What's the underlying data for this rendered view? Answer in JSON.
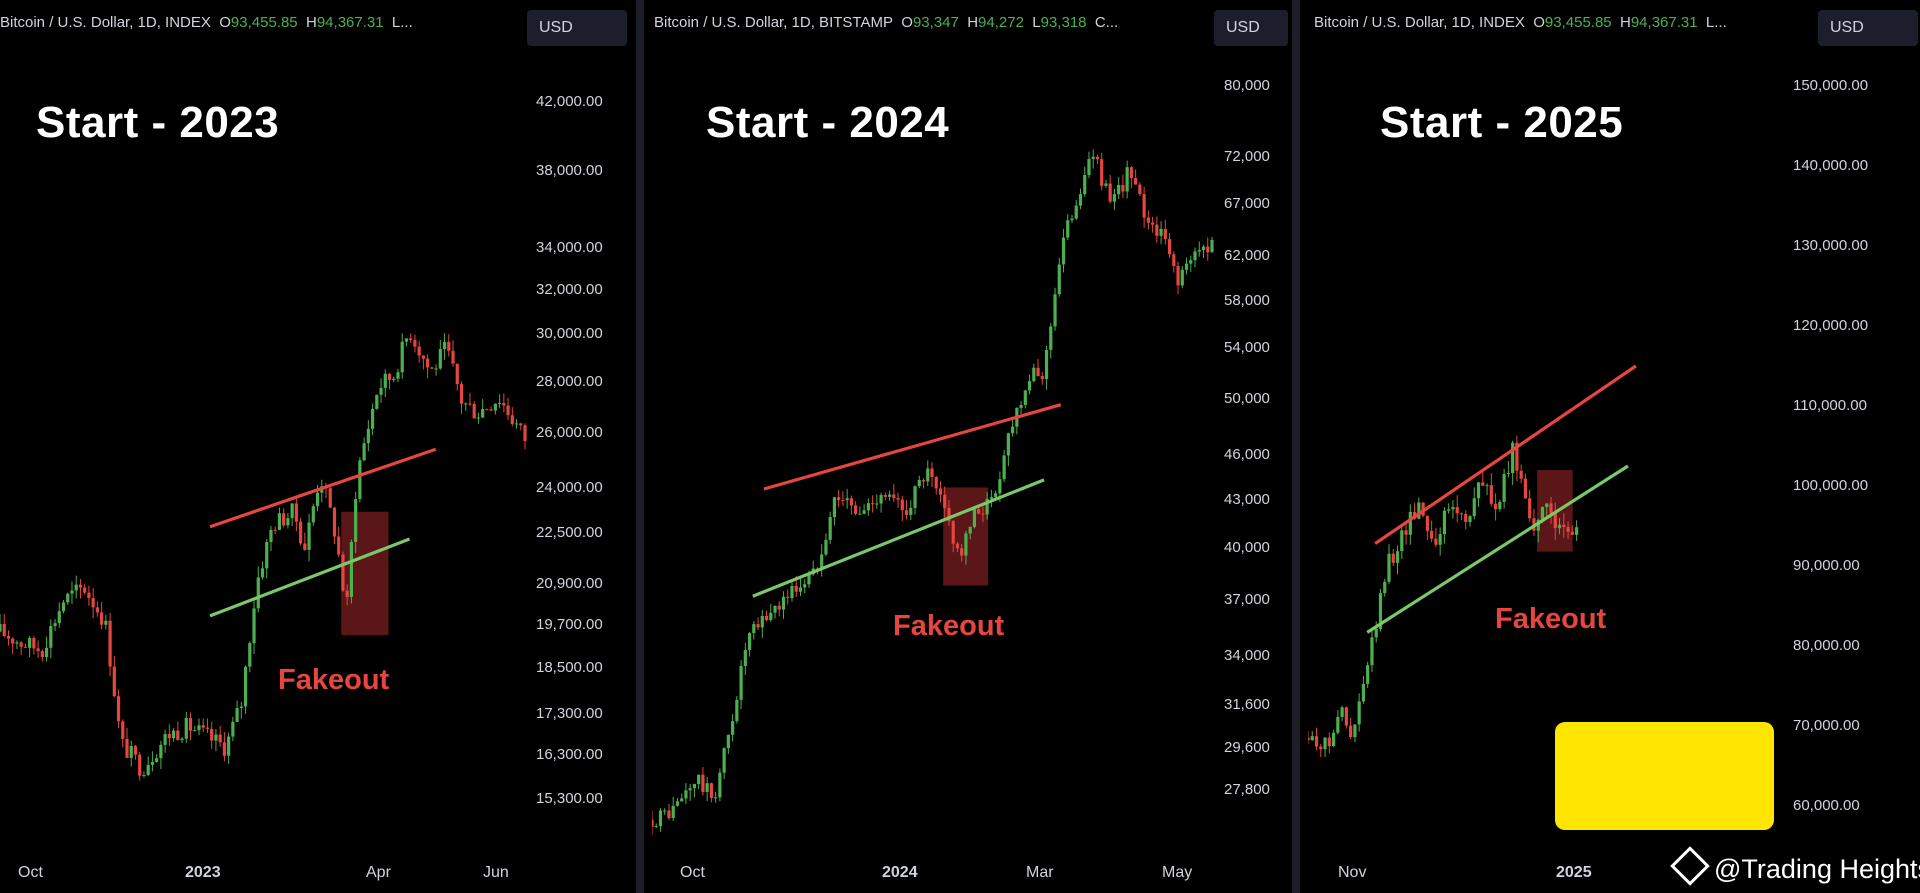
{
  "colors": {
    "up": "#4caf50",
    "down": "#e5463f",
    "resistance": "#e5463f",
    "support": "#7bc86c",
    "box": "#7a1f1f",
    "badge": "#ffe600"
  },
  "watermark": {
    "text": "@Trading Heights",
    "icon": "binance-diamond-icon"
  },
  "chart_data": [
    {
      "type": "candlestick",
      "header": {
        "symbol": "Bitcoin / U.S. Dollar, 1D, INDEX",
        "o_label": "O",
        "o": "93,455.85",
        "h_label": "H",
        "h": "94,367.31",
        "l_label": "L..."
      },
      "currency": "USD",
      "title": "Start - 2023",
      "annotation": "Fakeout",
      "y_ticks": [
        "42,000.00",
        "38,000.00",
        "34,000.00",
        "32,000.00",
        "30,000.00",
        "28,000.00",
        "26,000.00",
        "24,000.00",
        "22,500.00",
        "20,900.00",
        "19,700.00",
        "18,500.00",
        "17,300.00",
        "16,300.00",
        "15,300.00"
      ],
      "x_ticks": [
        "Oct",
        "2023",
        "Apr",
        "Jun"
      ],
      "x_ticks_bold": [
        false,
        true,
        false,
        false
      ],
      "scale": "log",
      "ylim": [
        14800,
        44000
      ],
      "series": [
        {
          "x": 0,
          "y": 19500
        },
        {
          "x": 0.04,
          "y": 19200
        },
        {
          "x": 0.08,
          "y": 19000
        },
        {
          "x": 0.12,
          "y": 20400
        },
        {
          "x": 0.16,
          "y": 20800
        },
        {
          "x": 0.2,
          "y": 19800
        },
        {
          "x": 0.23,
          "y": 16600
        },
        {
          "x": 0.27,
          "y": 16000
        },
        {
          "x": 0.32,
          "y": 16800
        },
        {
          "x": 0.36,
          "y": 17000
        },
        {
          "x": 0.4,
          "y": 16700
        },
        {
          "x": 0.43,
          "y": 16500
        },
        {
          "x": 0.46,
          "y": 17600
        },
        {
          "x": 0.49,
          "y": 21000
        },
        {
          "x": 0.52,
          "y": 22800
        },
        {
          "x": 0.56,
          "y": 23200
        },
        {
          "x": 0.58,
          "y": 22000
        },
        {
          "x": 0.61,
          "y": 24500
        },
        {
          "x": 0.64,
          "y": 22400
        },
        {
          "x": 0.66,
          "y": 20000
        },
        {
          "x": 0.68,
          "y": 24500
        },
        {
          "x": 0.72,
          "y": 27800
        },
        {
          "x": 0.75,
          "y": 28300
        },
        {
          "x": 0.78,
          "y": 30200
        },
        {
          "x": 0.82,
          "y": 28400
        },
        {
          "x": 0.85,
          "y": 29400
        },
        {
          "x": 0.88,
          "y": 27200
        },
        {
          "x": 0.91,
          "y": 26800
        },
        {
          "x": 0.95,
          "y": 27400
        },
        {
          "x": 1.0,
          "y": 25800
        }
      ],
      "resistance_line": [
        [
          0.4,
          22700
        ],
        [
          0.83,
          25400
        ]
      ],
      "support_line": [
        [
          0.4,
          19950
        ],
        [
          0.78,
          22300
        ]
      ],
      "fakeout_box": {
        "x": [
          0.65,
          0.74
        ],
        "y": [
          19400,
          23200
        ]
      }
    },
    {
      "type": "candlestick",
      "header": {
        "symbol": "Bitcoin / U.S. Dollar, 1D, BITSTAMP",
        "o_label": "O",
        "o": "93,347",
        "h_label": "H",
        "h": "94,272",
        "l_label": "L",
        "l": "93,318",
        "tail": "C..."
      },
      "currency": "USD",
      "title": "Start - 2024",
      "annotation": "Fakeout",
      "y_ticks": [
        "80,000",
        "72,000",
        "67,000",
        "62,000",
        "58,000",
        "54,000",
        "50,000",
        "46,000",
        "43,000",
        "40,000",
        "37,000",
        "34,000",
        "31,600",
        "29,600",
        "27,800"
      ],
      "x_ticks": [
        "Oct",
        "2024",
        "Mar",
        "May"
      ],
      "x_ticks_bold": [
        false,
        true,
        false,
        false
      ],
      "scale": "log",
      "ylim": [
        26500,
        82000
      ],
      "series": [
        {
          "x": 0,
          "y": 26600
        },
        {
          "x": 0.04,
          "y": 27000
        },
        {
          "x": 0.08,
          "y": 28300
        },
        {
          "x": 0.11,
          "y": 27400
        },
        {
          "x": 0.14,
          "y": 30500
        },
        {
          "x": 0.17,
          "y": 34800
        },
        {
          "x": 0.21,
          "y": 36300
        },
        {
          "x": 0.25,
          "y": 37500
        },
        {
          "x": 0.29,
          "y": 38500
        },
        {
          "x": 0.33,
          "y": 43500
        },
        {
          "x": 0.37,
          "y": 42000
        },
        {
          "x": 0.41,
          "y": 43600
        },
        {
          "x": 0.45,
          "y": 42200
        },
        {
          "x": 0.49,
          "y": 44800
        },
        {
          "x": 0.52,
          "y": 42500
        },
        {
          "x": 0.55,
          "y": 39500
        },
        {
          "x": 0.58,
          "y": 42300
        },
        {
          "x": 0.61,
          "y": 43000
        },
        {
          "x": 0.64,
          "y": 48000
        },
        {
          "x": 0.67,
          "y": 51500
        },
        {
          "x": 0.7,
          "y": 52000
        },
        {
          "x": 0.73,
          "y": 62500
        },
        {
          "x": 0.76,
          "y": 68000
        },
        {
          "x": 0.79,
          "y": 72500
        },
        {
          "x": 0.82,
          "y": 66500
        },
        {
          "x": 0.85,
          "y": 70500
        },
        {
          "x": 0.88,
          "y": 66000
        },
        {
          "x": 0.91,
          "y": 64000
        },
        {
          "x": 0.94,
          "y": 60000
        },
        {
          "x": 0.97,
          "y": 62000
        },
        {
          "x": 1.0,
          "y": 63500
        }
      ],
      "resistance_line": [
        [
          0.2,
          43700
        ],
        [
          0.73,
          49600
        ]
      ],
      "support_line": [
        [
          0.18,
          37200
        ],
        [
          0.7,
          44300
        ]
      ],
      "fakeout_box": {
        "x": [
          0.52,
          0.6
        ],
        "y": [
          37800,
          43800
        ]
      }
    },
    {
      "type": "candlestick",
      "header": {
        "symbol": "Bitcoin / U.S. Dollar, 1D, INDEX",
        "o_label": "O",
        "o": "93,455.85",
        "h_label": "H",
        "h": "94,367.31",
        "l_label": "L..."
      },
      "currency": "USD",
      "title": "Start - 2025",
      "annotation": "Fakeout",
      "y_ticks": [
        "150,000.00",
        "140,000.00",
        "130,000.00",
        "120,000.00",
        "110,000.00",
        "100,000.00",
        "90,000.00",
        "80,000.00",
        "70,000.00",
        "60,000.00"
      ],
      "x_ticks": [
        "Nov",
        "2025"
      ],
      "x_ticks_bold": [
        false,
        true
      ],
      "scale": "linear",
      "ylim": [
        58000,
        152000
      ],
      "series": [
        {
          "x": 0,
          "y": 68500
        },
        {
          "x": 0.05,
          "y": 67500
        },
        {
          "x": 0.08,
          "y": 72500
        },
        {
          "x": 0.11,
          "y": 68000
        },
        {
          "x": 0.14,
          "y": 75000
        },
        {
          "x": 0.17,
          "y": 82000
        },
        {
          "x": 0.2,
          "y": 90000
        },
        {
          "x": 0.24,
          "y": 94000
        },
        {
          "x": 0.28,
          "y": 98000
        },
        {
          "x": 0.32,
          "y": 93000
        },
        {
          "x": 0.36,
          "y": 97500
        },
        {
          "x": 0.4,
          "y": 96000
        },
        {
          "x": 0.44,
          "y": 100500
        },
        {
          "x": 0.48,
          "y": 97000
        },
        {
          "x": 0.52,
          "y": 104500
        },
        {
          "x": 0.55,
          "y": 99000
        },
        {
          "x": 0.58,
          "y": 94000
        },
        {
          "x": 0.61,
          "y": 98500
        },
        {
          "x": 0.64,
          "y": 93500
        },
        {
          "x": 0.68,
          "y": 94000
        }
      ],
      "resistance_line": [
        [
          0.17,
          92800
        ],
        [
          0.83,
          115000
        ]
      ],
      "support_line": [
        [
          0.15,
          81700
        ],
        [
          0.81,
          102500
        ]
      ],
      "fakeout_box": {
        "x": [
          0.58,
          0.67
        ],
        "y": [
          91800,
          102000
        ]
      }
    }
  ]
}
